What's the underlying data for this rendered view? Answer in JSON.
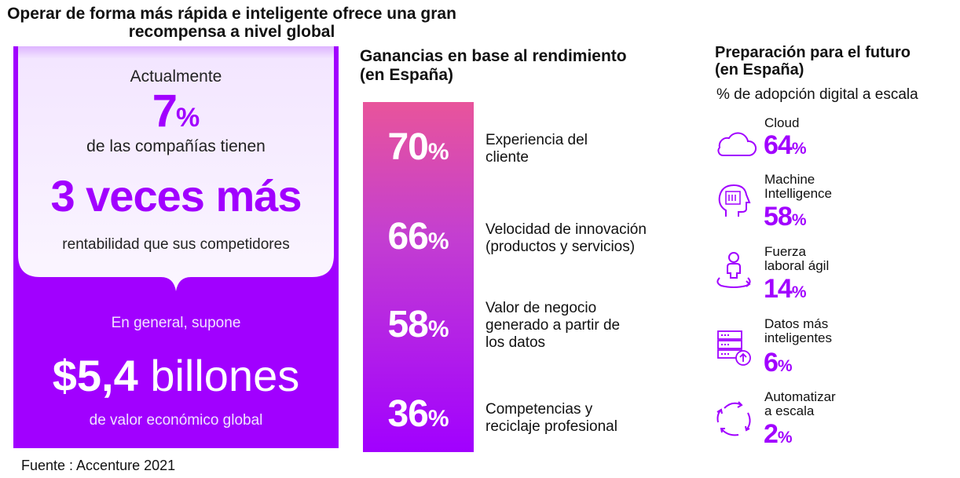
{
  "title": "Operar de forma más rápida e inteligente ofrece una gran recompensa a nivel global",
  "left_panel": {
    "actualmente": "Actualmente",
    "stat_value": "7",
    "stat_unit": "%",
    "companias": "de las compañías tienen",
    "three_times": "3 veces más",
    "rentabilidad": "rentabilidad que sus competidores",
    "en_general": "En general, supone",
    "billones_number": "$5,4",
    "billones_word": "billones",
    "valor": "de valor económico global"
  },
  "source": "Fuente : Accenture  2021",
  "middle": {
    "title_line1": "Ganancias en base al rendimiento",
    "title_line2": "(en España)",
    "items": [
      {
        "value": "70",
        "unit": "%",
        "label_line1": "Experiencia del",
        "label_line2": "cliente",
        "label_line3": ""
      },
      {
        "value": "66",
        "unit": "%",
        "label_line1": "Velocidad de innovación",
        "label_line2": "(productos y servicios)",
        "label_line3": ""
      },
      {
        "value": "58",
        "unit": "%",
        "label_line1": "Valor de negocio",
        "label_line2": "generado a partir de",
        "label_line3": "los datos"
      },
      {
        "value": "36",
        "unit": "%",
        "label_line1": "Competencias y",
        "label_line2": "reciclaje profesional",
        "label_line3": ""
      }
    ]
  },
  "right": {
    "title_line1": "Preparación para el futuro",
    "title_line2": "(en España)",
    "subtitle": "% de adopción digital a escala",
    "items": [
      {
        "icon": "cloud-icon",
        "label_line1": "Cloud",
        "label_line2": "",
        "value": "64",
        "unit": "%"
      },
      {
        "icon": "ai-head-icon",
        "label_line1": "Machine",
        "label_line2": "Intelligence",
        "value": "58",
        "unit": "%"
      },
      {
        "icon": "agile-person-icon",
        "label_line1": "Fuerza",
        "label_line2": "laboral ágil",
        "value": "14",
        "unit": "%"
      },
      {
        "icon": "data-server-icon",
        "label_line1": "Datos más",
        "label_line2": "inteligentes",
        "value": "6",
        "unit": "%"
      },
      {
        "icon": "cycle-arrows-icon",
        "label_line1": "Automatizar",
        "label_line2": "a escala",
        "value": "2",
        "unit": "%"
      }
    ]
  },
  "colors": {
    "accent": "#a100ff",
    "panel_light": "#f2e4ff",
    "gradient_top": "#e8549b",
    "gradient_bottom": "#a100ff"
  }
}
